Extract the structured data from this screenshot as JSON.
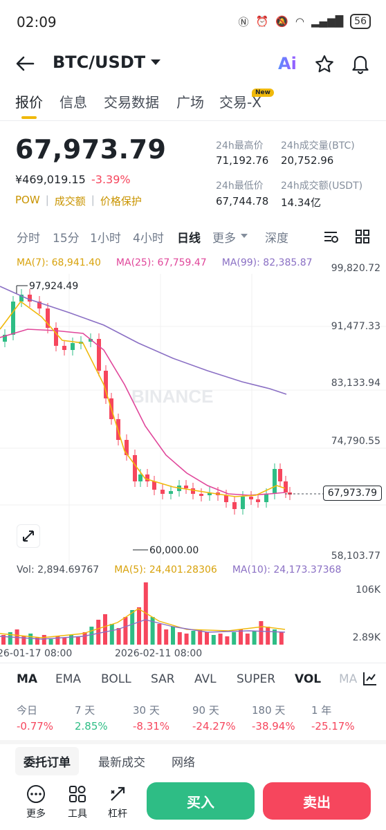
{
  "status": {
    "time": "02:09",
    "battery": "56"
  },
  "header": {
    "pair": "BTC/USDT",
    "ai_label": "Ai"
  },
  "tabs": [
    "报价",
    "信息",
    "交易数据",
    "广场",
    "交易-X"
  ],
  "new_badge": "New",
  "ticker": {
    "price": "67,973.79",
    "cny": "¥469,019.15",
    "change": "-3.39%",
    "tags": [
      "POW",
      "成交额",
      "价格保护"
    ],
    "high_label": "24h最高价",
    "high": "71,192.76",
    "vol_btc_label": "24h成交量(BTC)",
    "vol_btc": "20,752.96",
    "low_label": "24h最低价",
    "low": "67,744.78",
    "vol_usdt_label": "24h成交额(USDT)",
    "vol_usdt": "14.34亿"
  },
  "timeframes": [
    "分时",
    "15分",
    "1小时",
    "4小时",
    "日线",
    "更多",
    "深度"
  ],
  "ma": {
    "ma7": "MA(7): 68,941.40",
    "ma25": "MA(25): 67,759.47",
    "ma99": "MA(99): 82,385.87"
  },
  "price_axis": [
    "99,820.72",
    "91,477.33",
    "83,133.94",
    "74,790.55",
    "58,103.77"
  ],
  "current_price_tag": "67,973.79",
  "annotations": {
    "high": "97,924.49",
    "low": "60,000.00"
  },
  "watermark": "BINANCE",
  "volume": {
    "vol": "Vol: 2,894.69767",
    "ma5": "MA(5): 24,401.28306",
    "ma10": "MA(10): 24,173.37368",
    "axis_top": "106K",
    "axis_bottom": "2.89K"
  },
  "dates": [
    "26-01-17 08:00",
    "2026-02-11 08:00"
  ],
  "indicators": [
    "MA",
    "EMA",
    "BOLL",
    "SAR",
    "AVL",
    "SUPER",
    "VOL",
    "MA"
  ],
  "performance": [
    {
      "label": "今日",
      "value": "-0.77%"
    },
    {
      "label": "7 天",
      "value": "2.85%"
    },
    {
      "label": "30 天",
      "value": "-8.31%"
    },
    {
      "label": "90 天",
      "value": "-24.27%"
    },
    {
      "label": "180 天",
      "value": "-38.94%"
    },
    {
      "label": "1 年",
      "value": "-25.17%"
    }
  ],
  "subtabs": [
    "委托订单",
    "最新成交",
    "网络"
  ],
  "toolbar": {
    "more": "更多",
    "tools": "工具",
    "leverage": "杠杆",
    "buy": "买入",
    "sell": "卖出"
  },
  "colors": {
    "up": "#2ebd85",
    "down": "#f6465d",
    "ma7": "#f0b90b",
    "ma25": "#e0469a",
    "ma99": "#8a6fc4"
  }
}
